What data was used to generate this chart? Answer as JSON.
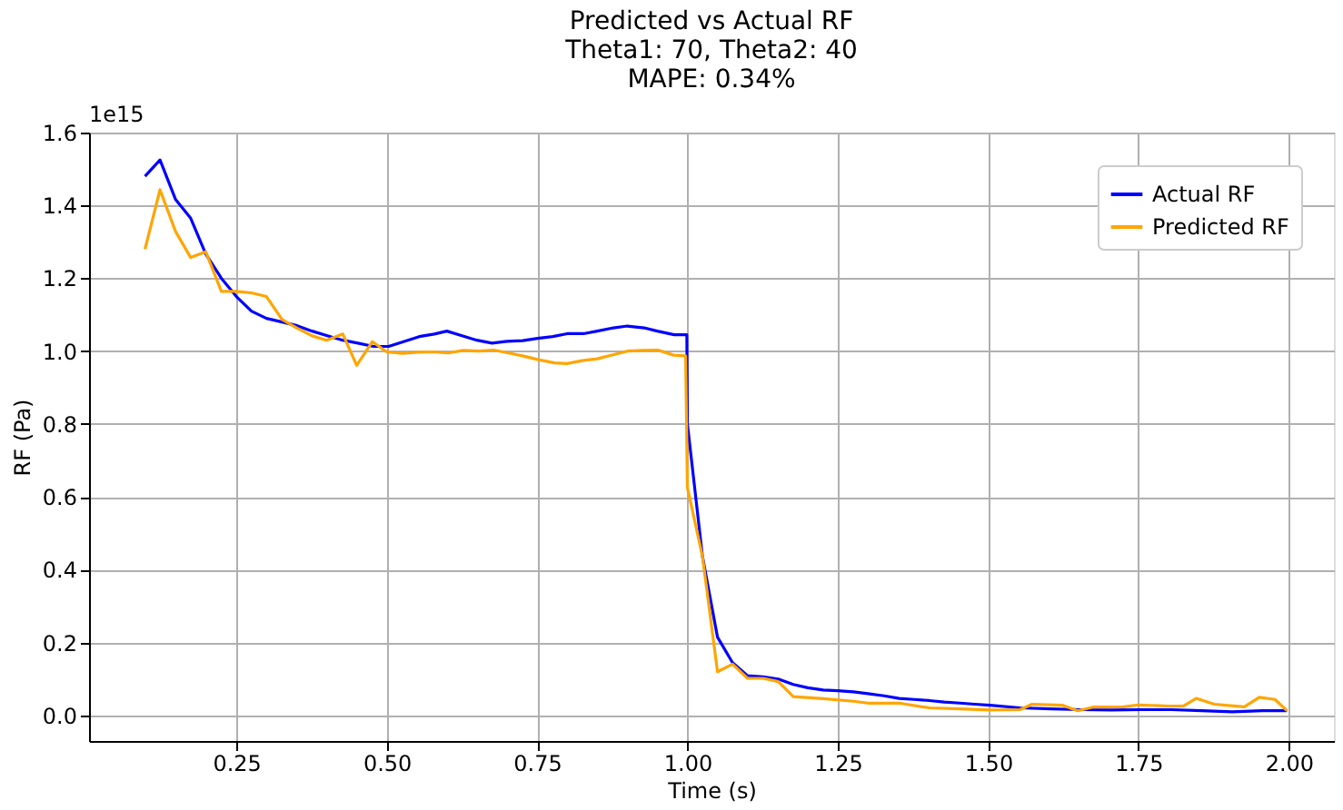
{
  "chart_data": {
    "type": "line",
    "title": "Predicted vs Actual RF",
    "subtitle": "Theta1: 70, Theta2: 40\nMAPE: 0.34%",
    "xlabel": "Time (s)",
    "ylabel": "RF (Pa)",
    "annotations": [
      "1e15"
    ],
    "series": [
      {
        "name": "Actual RF",
        "color": "#0000ff",
        "x": [
          0.098,
          0.123,
          0.149,
          0.174,
          0.199,
          0.225,
          0.25,
          0.275,
          0.3,
          0.326,
          0.351,
          0.376,
          0.4,
          0.427,
          0.452,
          0.478,
          0.503,
          0.528,
          0.554,
          0.579,
          0.6,
          0.624,
          0.65,
          0.675,
          0.7,
          0.726,
          0.751,
          0.776,
          0.8,
          0.827,
          0.85,
          0.877,
          0.9,
          0.928,
          0.95,
          0.978,
          0.999,
          1.0,
          1.025,
          1.05,
          1.075,
          1.1,
          1.126,
          1.151,
          1.176,
          1.2,
          1.226,
          1.25,
          1.276,
          1.3,
          1.327,
          1.352,
          1.377,
          1.402,
          1.427,
          1.453,
          1.478,
          1.503,
          1.553,
          1.604,
          1.654,
          1.705,
          1.755,
          1.805,
          1.855,
          1.906,
          1.956,
          1.997
        ],
        "values": [
          1.48,
          1.525,
          1.416,
          1.365,
          1.267,
          1.2,
          1.15,
          1.11,
          1.09,
          1.08,
          1.07,
          1.055,
          1.043,
          1.03,
          1.022,
          1.013,
          1.013,
          1.026,
          1.04,
          1.047,
          1.055,
          1.043,
          1.03,
          1.022,
          1.027,
          1.029,
          1.035,
          1.04,
          1.048,
          1.048,
          1.055,
          1.064,
          1.069,
          1.064,
          1.055,
          1.045,
          1.045,
          0.8,
          0.437,
          0.215,
          0.145,
          0.109,
          0.106,
          0.1,
          0.085,
          0.076,
          0.07,
          0.068,
          0.065,
          0.06,
          0.054,
          0.047,
          0.044,
          0.041,
          0.037,
          0.034,
          0.031,
          0.028,
          0.021,
          0.018,
          0.016,
          0.015,
          0.016,
          0.016,
          0.013,
          0.01,
          0.013,
          0.013
        ]
      },
      {
        "name": "Predicted RF",
        "color": "#ffa500",
        "x": [
          0.098,
          0.123,
          0.149,
          0.174,
          0.199,
          0.225,
          0.25,
          0.275,
          0.3,
          0.326,
          0.351,
          0.376,
          0.4,
          0.427,
          0.45,
          0.476,
          0.5,
          0.526,
          0.552,
          0.577,
          0.602,
          0.627,
          0.653,
          0.678,
          0.703,
          0.729,
          0.754,
          0.779,
          0.8,
          0.825,
          0.85,
          0.876,
          0.9,
          0.926,
          0.951,
          0.977,
          0.997,
          1.0,
          1.025,
          1.05,
          1.075,
          1.1,
          1.126,
          1.151,
          1.176,
          1.226,
          1.276,
          1.3,
          1.352,
          1.402,
          1.453,
          1.503,
          1.553,
          1.573,
          1.624,
          1.649,
          1.674,
          1.725,
          1.75,
          1.8,
          1.825,
          1.846,
          1.876,
          1.926,
          1.951,
          1.977,
          1.997
        ],
        "values": [
          1.28,
          1.443,
          1.328,
          1.257,
          1.273,
          1.164,
          1.164,
          1.16,
          1.15,
          1.087,
          1.063,
          1.042,
          1.03,
          1.047,
          0.961,
          1.026,
          0.998,
          0.994,
          0.997,
          0.998,
          0.995,
          1.002,
          1.0,
          1.003,
          0.995,
          0.986,
          0.976,
          0.968,
          0.966,
          0.974,
          0.979,
          0.99,
          1.0,
          1.002,
          1.003,
          0.989,
          0.987,
          0.625,
          0.437,
          0.12,
          0.141,
          0.102,
          0.102,
          0.093,
          0.052,
          0.046,
          0.039,
          0.034,
          0.034,
          0.021,
          0.018,
          0.015,
          0.016,
          0.031,
          0.028,
          0.013,
          0.023,
          0.024,
          0.029,
          0.026,
          0.026,
          0.047,
          0.031,
          0.024,
          0.05,
          0.044,
          0.013
        ]
      }
    ],
    "xlim": [
      0.005,
      2.075
    ],
    "ylim": [
      -0.07,
      1.6
    ],
    "xticks": [
      {
        "value": 0.25,
        "label": "0.25"
      },
      {
        "value": 0.5,
        "label": "0.50"
      },
      {
        "value": 0.75,
        "label": "0.75"
      },
      {
        "value": 1.0,
        "label": "1.00"
      },
      {
        "value": 1.25,
        "label": "1.25"
      },
      {
        "value": 1.5,
        "label": "1.50"
      },
      {
        "value": 1.75,
        "label": "1.75"
      },
      {
        "value": 2.0,
        "label": "2.00"
      }
    ],
    "yticks": [
      {
        "value": 0.0,
        "label": "0.0"
      },
      {
        "value": 0.2,
        "label": "0.2"
      },
      {
        "value": 0.4,
        "label": "0.4"
      },
      {
        "value": 0.6,
        "label": "0.6"
      },
      {
        "value": 0.8,
        "label": "0.8"
      },
      {
        "value": 1.0,
        "label": "1.0"
      },
      {
        "value": 1.2,
        "label": "1.2"
      },
      {
        "value": 1.4,
        "label": "1.4"
      },
      {
        "value": 1.6,
        "label": "1.6"
      }
    ],
    "grid": true,
    "legend": "top right",
    "line_style": "solid"
  }
}
